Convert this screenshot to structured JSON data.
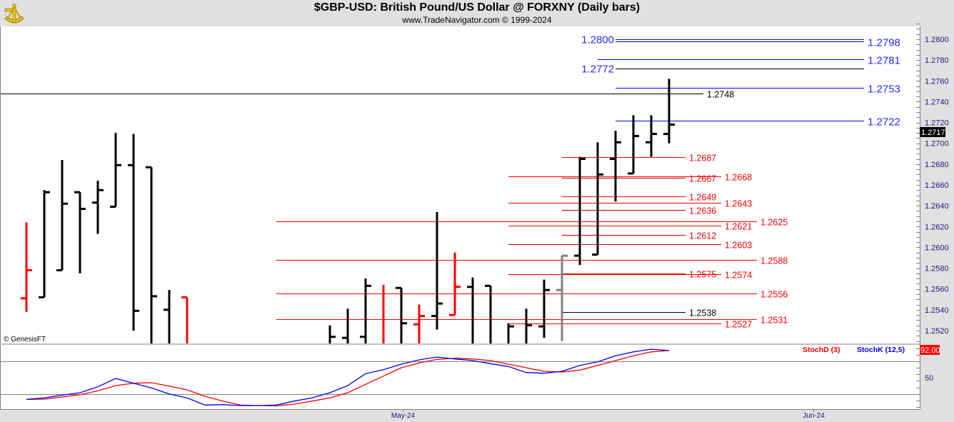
{
  "header": {
    "title": "$GBP-USD:  British Pound/US Dollar @ FORXNY  (Daily bars)",
    "subtitle": "www.TradeNavigator.com © 1999-2024",
    "logo": "sextant-logo"
  },
  "copyright": "© GenesisFT",
  "colors": {
    "up": "#000000",
    "down": "#ff0000",
    "pending": "#808080",
    "blue": "#0000ff",
    "red": "#ff0000",
    "darkred": "#c00000",
    "stochD": "#ff0000",
    "stochK": "#0000ff"
  },
  "chart_data": [
    {
      "type": "ohlc",
      "title": "$GBP-USD Daily bars",
      "ylim": [
        1.251,
        1.2815
      ],
      "y_ticks": [
        "1.2520",
        "1.2540",
        "1.2560",
        "1.2580",
        "1.2600",
        "1.2620",
        "1.2640",
        "1.2660",
        "1.2680",
        "1.2700",
        "1.2720",
        "1.2740",
        "1.2760",
        "1.2780",
        "1.2800"
      ],
      "x_ticks": [
        {
          "label": "May-24",
          "bar": 21.1
        },
        {
          "label": "Jun-24",
          "bar": 44.1
        }
      ],
      "last_price_label": "1.2717",
      "bars": [
        {
          "i": 0,
          "o": 1.2551,
          "h": 1.2624,
          "l": 1.2538,
          "c": 1.2578,
          "color": "down"
        },
        {
          "i": 1,
          "o": 1.2552,
          "h": 1.2655,
          "l": 1.2552,
          "c": 1.2653,
          "color": "up"
        },
        {
          "i": 2,
          "o": 1.2578,
          "h": 1.2684,
          "l": 1.2578,
          "c": 1.2642,
          "color": "up"
        },
        {
          "i": 3,
          "o": 1.2653,
          "h": 1.2653,
          "l": 1.2575,
          "c": 1.2637,
          "color": "up"
        },
        {
          "i": 4,
          "o": 1.2643,
          "h": 1.2664,
          "l": 1.2613,
          "c": 1.2655,
          "color": "up"
        },
        {
          "i": 5,
          "o": 1.2639,
          "h": 1.271,
          "l": 1.2639,
          "c": 1.2679,
          "color": "up"
        },
        {
          "i": 6,
          "o": 1.2679,
          "h": 1.2709,
          "l": 1.252,
          "c": 1.2539,
          "color": "up"
        },
        {
          "i": 7,
          "o": 1.2677,
          "h": 1.2677,
          "l": 1.25,
          "c": 1.2553,
          "color": "up"
        },
        {
          "i": 8,
          "o": 1.254,
          "h": 1.2559,
          "l": 1.25,
          "c": 1.25,
          "color": "up"
        },
        {
          "i": 9,
          "o": 1.2552,
          "h": 1.2552,
          "l": 1.25,
          "c": 1.25,
          "color": "down"
        },
        {
          "i": 17,
          "o": 1.25,
          "h": 1.2525,
          "l": 1.25,
          "c": 1.2514,
          "color": "up"
        },
        {
          "i": 18,
          "o": 1.2513,
          "h": 1.2541,
          "l": 1.25,
          "c": 1.25,
          "color": "up"
        },
        {
          "i": 19,
          "o": 1.2514,
          "h": 1.257,
          "l": 1.25,
          "c": 1.2563,
          "color": "up"
        },
        {
          "i": 20,
          "o": 1.25,
          "h": 1.2564,
          "l": 1.25,
          "c": 1.25,
          "color": "down"
        },
        {
          "i": 21,
          "o": 1.2561,
          "h": 1.2561,
          "l": 1.25,
          "c": 1.2527,
          "color": "up"
        },
        {
          "i": 22,
          "o": 1.2526,
          "h": 1.2545,
          "l": 1.25,
          "c": 1.2534,
          "color": "down"
        },
        {
          "i": 23,
          "o": 1.2534,
          "h": 1.2634,
          "l": 1.2521,
          "c": 1.2546,
          "color": "up"
        },
        {
          "i": 24,
          "o": 1.2535,
          "h": 1.2595,
          "l": 1.2535,
          "c": 1.2562,
          "color": "down"
        },
        {
          "i": 25,
          "o": 1.2562,
          "h": 1.2571,
          "l": 1.25,
          "c": 1.25,
          "color": "up"
        },
        {
          "i": 26,
          "o": 1.2563,
          "h": 1.2563,
          "l": 1.25,
          "c": 1.25,
          "color": "up"
        },
        {
          "i": 27,
          "o": 1.25,
          "h": 1.2527,
          "l": 1.25,
          "c": 1.2524,
          "color": "up"
        },
        {
          "i": 28,
          "o": 1.25,
          "h": 1.2541,
          "l": 1.25,
          "c": 1.2525,
          "color": "up"
        },
        {
          "i": 29,
          "o": 1.2524,
          "h": 1.2569,
          "l": 1.2513,
          "c": 1.2559,
          "color": "up"
        },
        {
          "i": 30,
          "o": 1.2559,
          "h": 1.2592,
          "l": 1.251,
          "c": 1.2592,
          "color": "pending"
        },
        {
          "i": 31,
          "o": 1.2592,
          "h": 1.2687,
          "l": 1.2583,
          "c": 1.2685,
          "color": "up"
        },
        {
          "i": 32,
          "o": 1.2593,
          "h": 1.2701,
          "l": 1.2593,
          "c": 1.267,
          "color": "up"
        },
        {
          "i": 33,
          "o": 1.2685,
          "h": 1.2712,
          "l": 1.2644,
          "c": 1.2701,
          "color": "up"
        },
        {
          "i": 34,
          "o": 1.2671,
          "h": 1.2727,
          "l": 1.2671,
          "c": 1.2707,
          "color": "up"
        },
        {
          "i": 35,
          "o": 1.2701,
          "h": 1.2727,
          "l": 1.2687,
          "c": 1.2709,
          "color": "up"
        },
        {
          "i": 36,
          "o": 1.2709,
          "h": 1.2762,
          "l": 1.27,
          "c": 1.2718,
          "color": "up"
        }
      ],
      "levels": [
        {
          "price": 1.28,
          "label": "1.2800",
          "tier": "D",
          "side": "left",
          "line": "blue",
          "text": "blue"
        },
        {
          "price": 1.2798,
          "label": "1.2798",
          "tier": "D",
          "side": "right",
          "line": "blue",
          "text": "blue"
        },
        {
          "price": 1.2781,
          "label": "1.2781",
          "tier": "E",
          "side": "right",
          "line": "blue",
          "text": "blue"
        },
        {
          "price": 1.2772,
          "label": "1.2772",
          "tier": "D",
          "side": "left",
          "line": "black",
          "text": "blue"
        },
        {
          "price": 1.2753,
          "label": "1.2753",
          "tier": "D",
          "side": "right",
          "line": "blue",
          "text": "blue"
        },
        {
          "price": 1.2748,
          "label": "1.2748",
          "tier": "F",
          "side": "right",
          "line": "black",
          "text": "black"
        },
        {
          "price": 1.2722,
          "label": "1.2722",
          "tier": "D",
          "side": "right",
          "line": "blue",
          "text": "blue"
        },
        {
          "price": 1.2687,
          "label": "1.2687",
          "tier": "A",
          "side": "right",
          "line": "red",
          "text": "red"
        },
        {
          "price": 1.2668,
          "label": "1.2668",
          "tier": "B",
          "side": "right",
          "line": "red",
          "text": "red"
        },
        {
          "price": 1.2667,
          "label": "1.2667",
          "tier": "A",
          "side": "right",
          "line": "darkred",
          "text": "red"
        },
        {
          "price": 1.2649,
          "label": "1.2649",
          "tier": "A",
          "side": "right",
          "line": "red",
          "text": "red"
        },
        {
          "price": 1.2643,
          "label": "1.2643",
          "tier": "B",
          "side": "right",
          "line": "red",
          "text": "red"
        },
        {
          "price": 1.2636,
          "label": "1.2636",
          "tier": "A",
          "side": "right",
          "line": "darkred",
          "text": "red"
        },
        {
          "price": 1.2625,
          "label": "1.2625",
          "tier": "C",
          "side": "right",
          "line": "red",
          "text": "red"
        },
        {
          "price": 1.2621,
          "label": "1.2621",
          "tier": "B",
          "side": "right",
          "line": "red",
          "text": "red"
        },
        {
          "price": 1.2612,
          "label": "1.2612",
          "tier": "A",
          "side": "right",
          "line": "darkred",
          "text": "red"
        },
        {
          "price": 1.2603,
          "label": "1.2603",
          "tier": "B",
          "side": "right",
          "line": "darkred",
          "text": "red"
        },
        {
          "price": 1.2588,
          "label": "1.2588",
          "tier": "C",
          "side": "right",
          "line": "red",
          "text": "red"
        },
        {
          "price": 1.2575,
          "label": "1.2575",
          "tier": "A",
          "side": "right",
          "line": "red",
          "text": "red"
        },
        {
          "price": 1.2574,
          "label": "1.2574",
          "tier": "B",
          "side": "right",
          "line": "red",
          "text": "red"
        },
        {
          "price": 1.2556,
          "label": "1.2556",
          "tier": "C",
          "side": "right",
          "line": "red",
          "text": "red"
        },
        {
          "price": 1.2538,
          "label": "1.2538",
          "tier": "A",
          "side": "right",
          "line": "black",
          "text": "black"
        },
        {
          "price": 1.2531,
          "label": "1.2531",
          "tier": "C",
          "side": "right",
          "line": "red",
          "text": "red"
        },
        {
          "price": 1.2527,
          "label": "1.2527",
          "tier": "B",
          "side": "right",
          "line": "red",
          "text": "red"
        }
      ]
    },
    {
      "type": "line",
      "title": "Stochastic",
      "ylim": [
        0,
        100
      ],
      "y_ticks": [
        "50"
      ],
      "ref_lines": [
        75,
        25
      ],
      "last_value_label": "92.00",
      "legend": [
        "StochD (3)",
        "StochK (12,5)"
      ],
      "legend_position": "top-right",
      "series": [
        {
          "name": "StochD (3)",
          "color": "stochD",
          "values": [
            16.5,
            16.8,
            20.1,
            23.8,
            29.7,
            37.8,
            41.4,
            42.2,
            37,
            31.2,
            21.2,
            13.8,
            7.6,
            6.9,
            6.5,
            9.1,
            13.8,
            18.7,
            26.7,
            39.7,
            52.5,
            65.4,
            72.8,
            78.3,
            80.1,
            79,
            76.5,
            70.9,
            65.4,
            59.9,
            58.8,
            61.8,
            69,
            76.5,
            83.9,
            90,
            92
          ]
        },
        {
          "name": "StochK (12,5)",
          "color": "stochK",
          "values": [
            16.5,
            18.7,
            23,
            26.7,
            35.9,
            48.8,
            41.4,
            34.1,
            24.9,
            18.7,
            7.6,
            8.3,
            6.9,
            6.9,
            7.6,
            13.8,
            18.7,
            26.7,
            37.8,
            56.2,
            62.4,
            70.9,
            77.6,
            82,
            79,
            76.5,
            71.7,
            67.3,
            58,
            56.9,
            59.9,
            69,
            74.6,
            83.9,
            90,
            94.1,
            92
          ]
        }
      ]
    }
  ]
}
